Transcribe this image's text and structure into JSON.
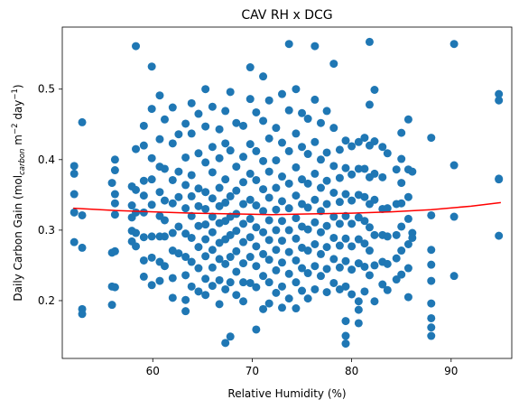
{
  "chart_data": {
    "type": "scatter",
    "title": "CAV RH x DCG",
    "xlabel": "Relative Humidity (%)",
    "ylabel_parts": {
      "prefix": "Daily Carbon Gain (mol",
      "subscript": "carbon",
      "middle": " m",
      "sup1": "−2",
      "middle2": " day",
      "sup2": "−1",
      "suffix": ")"
    },
    "xlim": [
      50.9,
      96.1
    ],
    "ylim": [
      0.118,
      0.588
    ],
    "xticks": [
      {
        "value": 60,
        "label": "60"
      },
      {
        "value": 70,
        "label": "70"
      },
      {
        "value": 80,
        "label": "80"
      },
      {
        "value": 90,
        "label": "90"
      }
    ],
    "yticks": [
      {
        "value": 0.2,
        "label": "0.2"
      },
      {
        "value": 0.3,
        "label": "0.3"
      },
      {
        "value": 0.4,
        "label": "0.4"
      },
      {
        "value": 0.5,
        "label": "0.5"
      }
    ],
    "point_color": "#1f77b4",
    "trend_color": "#ff0000",
    "trend_line": {
      "type": "quadratic",
      "x": [
        52,
        56,
        60,
        64,
        68,
        72,
        76,
        80,
        84,
        88,
        92,
        95
      ],
      "y": [
        0.331,
        0.328,
        0.326,
        0.324,
        0.323,
        0.322,
        0.323,
        0.324,
        0.326,
        0.329,
        0.334,
        0.339
      ]
    },
    "points": [
      [
        52.1,
        0.391
      ],
      [
        52.1,
        0.38
      ],
      [
        52.1,
        0.351
      ],
      [
        52.1,
        0.325
      ],
      [
        52.1,
        0.283
      ],
      [
        52.9,
        0.453
      ],
      [
        52.9,
        0.321
      ],
      [
        52.9,
        0.275
      ],
      [
        52.9,
        0.188
      ],
      [
        52.9,
        0.181
      ],
      [
        55.9,
        0.367
      ],
      [
        55.9,
        0.268
      ],
      [
        55.9,
        0.22
      ],
      [
        55.9,
        0.194
      ],
      [
        56.2,
        0.4
      ],
      [
        56.2,
        0.385
      ],
      [
        56.2,
        0.351
      ],
      [
        56.2,
        0.338
      ],
      [
        56.2,
        0.322
      ],
      [
        56.2,
        0.27
      ],
      [
        56.2,
        0.219
      ],
      [
        57.9,
        0.362
      ],
      [
        57.9,
        0.335
      ],
      [
        57.9,
        0.318
      ],
      [
        57.9,
        0.299
      ],
      [
        57.9,
        0.284
      ],
      [
        58.3,
        0.561
      ],
      [
        58.3,
        0.415
      ],
      [
        58.3,
        0.357
      ],
      [
        58.3,
        0.325
      ],
      [
        58.3,
        0.296
      ],
      [
        58.3,
        0.277
      ],
      [
        59.1,
        0.448
      ],
      [
        59.1,
        0.42
      ],
      [
        59.1,
        0.37
      ],
      [
        59.1,
        0.349
      ],
      [
        59.1,
        0.325
      ],
      [
        59.1,
        0.29
      ],
      [
        59.1,
        0.257
      ],
      [
        59.1,
        0.234
      ],
      [
        59.9,
        0.532
      ],
      [
        59.9,
        0.472
      ],
      [
        59.9,
        0.402
      ],
      [
        59.9,
        0.372
      ],
      [
        59.9,
        0.336
      ],
      [
        59.9,
        0.291
      ],
      [
        59.9,
        0.261
      ],
      [
        59.9,
        0.222
      ],
      [
        60.7,
        0.491
      ],
      [
        60.7,
        0.429
      ],
      [
        60.7,
        0.39
      ],
      [
        60.7,
        0.354
      ],
      [
        60.7,
        0.32
      ],
      [
        60.7,
        0.291
      ],
      [
        60.7,
        0.255
      ],
      [
        60.7,
        0.228
      ],
      [
        61.2,
        0.457
      ],
      [
        61.2,
        0.387
      ],
      [
        61.2,
        0.342
      ],
      [
        61.2,
        0.314
      ],
      [
        61.2,
        0.291
      ],
      [
        61.2,
        0.249
      ],
      [
        62.0,
        0.474
      ],
      [
        62.0,
        0.423
      ],
      [
        62.0,
        0.371
      ],
      [
        62.0,
        0.338
      ],
      [
        62.0,
        0.296
      ],
      [
        62.0,
        0.271
      ],
      [
        62.0,
        0.232
      ],
      [
        62.0,
        0.204
      ],
      [
        62.6,
        0.436
      ],
      [
        62.6,
        0.383
      ],
      [
        62.6,
        0.347
      ],
      [
        62.6,
        0.305
      ],
      [
        62.6,
        0.267
      ],
      [
        63.3,
        0.451
      ],
      [
        63.3,
        0.403
      ],
      [
        63.3,
        0.364
      ],
      [
        63.3,
        0.331
      ],
      [
        63.3,
        0.295
      ],
      [
        63.3,
        0.262
      ],
      [
        63.3,
        0.236
      ],
      [
        63.3,
        0.201
      ],
      [
        63.3,
        0.185
      ],
      [
        63.9,
        0.48
      ],
      [
        63.9,
        0.437
      ],
      [
        63.9,
        0.378
      ],
      [
        63.9,
        0.348
      ],
      [
        63.9,
        0.32
      ],
      [
        63.9,
        0.289
      ],
      [
        63.9,
        0.255
      ],
      [
        63.9,
        0.22
      ],
      [
        64.6,
        0.465
      ],
      [
        64.6,
        0.409
      ],
      [
        64.6,
        0.359
      ],
      [
        64.6,
        0.334
      ],
      [
        64.6,
        0.306
      ],
      [
        64.6,
        0.276
      ],
      [
        64.6,
        0.246
      ],
      [
        64.6,
        0.213
      ],
      [
        65.3,
        0.5
      ],
      [
        65.3,
        0.447
      ],
      [
        65.3,
        0.396
      ],
      [
        65.3,
        0.354
      ],
      [
        65.3,
        0.33
      ],
      [
        65.3,
        0.308
      ],
      [
        65.3,
        0.287
      ],
      [
        65.3,
        0.263
      ],
      [
        65.3,
        0.231
      ],
      [
        65.3,
        0.208
      ],
      [
        66.0,
        0.475
      ],
      [
        66.0,
        0.418
      ],
      [
        66.0,
        0.382
      ],
      [
        66.0,
        0.345
      ],
      [
        66.0,
        0.319
      ],
      [
        66.0,
        0.297
      ],
      [
        66.0,
        0.272
      ],
      [
        66.0,
        0.247
      ],
      [
        66.0,
        0.221
      ],
      [
        66.7,
        0.443
      ],
      [
        66.7,
        0.402
      ],
      [
        66.7,
        0.36
      ],
      [
        66.7,
        0.334
      ],
      [
        66.7,
        0.31
      ],
      [
        66.7,
        0.282
      ],
      [
        66.7,
        0.259
      ],
      [
        66.7,
        0.229
      ],
      [
        66.7,
        0.195
      ],
      [
        67.3,
        0.469
      ],
      [
        67.3,
        0.423
      ],
      [
        67.3,
        0.372
      ],
      [
        67.3,
        0.339
      ],
      [
        67.3,
        0.313
      ],
      [
        67.3,
        0.287
      ],
      [
        67.3,
        0.252
      ],
      [
        67.3,
        0.216
      ],
      [
        67.3,
        0.14
      ],
      [
        67.8,
        0.496
      ],
      [
        67.8,
        0.413
      ],
      [
        67.8,
        0.348
      ],
      [
        67.8,
        0.319
      ],
      [
        67.8,
        0.293
      ],
      [
        67.8,
        0.262
      ],
      [
        67.8,
        0.226
      ],
      [
        67.8,
        0.149
      ],
      [
        68.4,
        0.452
      ],
      [
        68.4,
        0.39
      ],
      [
        68.4,
        0.356
      ],
      [
        68.4,
        0.323
      ],
      [
        68.4,
        0.299
      ],
      [
        68.4,
        0.27
      ],
      [
        68.4,
        0.241
      ],
      [
        68.4,
        0.208
      ],
      [
        69.1,
        0.448
      ],
      [
        69.1,
        0.404
      ],
      [
        69.1,
        0.368
      ],
      [
        69.1,
        0.337
      ],
      [
        69.1,
        0.309
      ],
      [
        69.1,
        0.283
      ],
      [
        69.1,
        0.253
      ],
      [
        69.1,
        0.226
      ],
      [
        69.1,
        0.199
      ],
      [
        69.8,
        0.531
      ],
      [
        69.8,
        0.486
      ],
      [
        69.8,
        0.422
      ],
      [
        69.8,
        0.38
      ],
      [
        69.8,
        0.343
      ],
      [
        69.8,
        0.316
      ],
      [
        69.8,
        0.29
      ],
      [
        69.8,
        0.262
      ],
      [
        69.8,
        0.225
      ],
      [
        70.4,
        0.467
      ],
      [
        70.4,
        0.412
      ],
      [
        70.4,
        0.371
      ],
      [
        70.4,
        0.335
      ],
      [
        70.4,
        0.304
      ],
      [
        70.4,
        0.277
      ],
      [
        70.4,
        0.249
      ],
      [
        70.4,
        0.219
      ],
      [
        70.4,
        0.159
      ],
      [
        71.1,
        0.518
      ],
      [
        71.1,
        0.455
      ],
      [
        71.1,
        0.398
      ],
      [
        71.1,
        0.358
      ],
      [
        71.1,
        0.327
      ],
      [
        71.1,
        0.297
      ],
      [
        71.1,
        0.266
      ],
      [
        71.1,
        0.235
      ],
      [
        71.1,
        0.188
      ],
      [
        71.7,
        0.484
      ],
      [
        71.7,
        0.43
      ],
      [
        71.7,
        0.383
      ],
      [
        71.7,
        0.346
      ],
      [
        71.7,
        0.314
      ],
      [
        71.7,
        0.286
      ],
      [
        71.7,
        0.258
      ],
      [
        71.7,
        0.226
      ],
      [
        71.7,
        0.196
      ],
      [
        72.4,
        0.445
      ],
      [
        72.4,
        0.399
      ],
      [
        72.4,
        0.36
      ],
      [
        72.4,
        0.329
      ],
      [
        72.4,
        0.3
      ],
      [
        72.4,
        0.272
      ],
      [
        72.4,
        0.243
      ],
      [
        72.4,
        0.211
      ],
      [
        73.0,
        0.493
      ],
      [
        73.0,
        0.424
      ],
      [
        73.0,
        0.376
      ],
      [
        73.0,
        0.341
      ],
      [
        73.0,
        0.313
      ],
      [
        73.0,
        0.285
      ],
      [
        73.0,
        0.254
      ],
      [
        73.0,
        0.22
      ],
      [
        73.0,
        0.19
      ],
      [
        73.7,
        0.564
      ],
      [
        73.7,
        0.47
      ],
      [
        73.7,
        0.412
      ],
      [
        73.7,
        0.366
      ],
      [
        73.7,
        0.331
      ],
      [
        73.7,
        0.3
      ],
      [
        73.7,
        0.269
      ],
      [
        73.7,
        0.238
      ],
      [
        73.7,
        0.203
      ],
      [
        74.4,
        0.5
      ],
      [
        74.4,
        0.437
      ],
      [
        74.4,
        0.389
      ],
      [
        74.4,
        0.349
      ],
      [
        74.4,
        0.317
      ],
      [
        74.4,
        0.288
      ],
      [
        74.4,
        0.257
      ],
      [
        74.4,
        0.226
      ],
      [
        74.4,
        0.189
      ],
      [
        75.0,
        0.466
      ],
      [
        75.0,
        0.418
      ],
      [
        75.0,
        0.372
      ],
      [
        75.0,
        0.337
      ],
      [
        75.0,
        0.305
      ],
      [
        75.0,
        0.275
      ],
      [
        75.0,
        0.246
      ],
      [
        75.0,
        0.214
      ],
      [
        75.6,
        0.458
      ],
      [
        75.6,
        0.408
      ],
      [
        75.6,
        0.366
      ],
      [
        75.6,
        0.332
      ],
      [
        75.6,
        0.301
      ],
      [
        75.6,
        0.271
      ],
      [
        75.6,
        0.239
      ],
      [
        75.6,
        0.203
      ],
      [
        76.3,
        0.561
      ],
      [
        76.3,
        0.485
      ],
      [
        76.3,
        0.425
      ],
      [
        76.3,
        0.38
      ],
      [
        76.3,
        0.343
      ],
      [
        76.3,
        0.311
      ],
      [
        76.3,
        0.28
      ],
      [
        76.3,
        0.249
      ],
      [
        76.3,
        0.216
      ],
      [
        76.9,
        0.452
      ],
      [
        76.9,
        0.4
      ],
      [
        76.9,
        0.36
      ],
      [
        76.9,
        0.327
      ],
      [
        76.9,
        0.297
      ],
      [
        76.9,
        0.266
      ],
      [
        76.9,
        0.235
      ],
      [
        77.5,
        0.469
      ],
      [
        77.5,
        0.41
      ],
      [
        77.5,
        0.37
      ],
      [
        77.5,
        0.337
      ],
      [
        77.5,
        0.306
      ],
      [
        77.5,
        0.276
      ],
      [
        77.5,
        0.245
      ],
      [
        77.5,
        0.212
      ],
      [
        78.2,
        0.536
      ],
      [
        78.2,
        0.445
      ],
      [
        78.2,
        0.391
      ],
      [
        78.2,
        0.353
      ],
      [
        78.2,
        0.319
      ],
      [
        78.2,
        0.289
      ],
      [
        78.2,
        0.259
      ],
      [
        78.2,
        0.225
      ],
      [
        78.8,
        0.414
      ],
      [
        78.8,
        0.374
      ],
      [
        78.8,
        0.34
      ],
      [
        78.8,
        0.309
      ],
      [
        78.8,
        0.278
      ],
      [
        78.8,
        0.247
      ],
      [
        78.8,
        0.216
      ],
      [
        79.4,
        0.427
      ],
      [
        79.4,
        0.388
      ],
      [
        79.4,
        0.351
      ],
      [
        79.4,
        0.32
      ],
      [
        79.4,
        0.288
      ],
      [
        79.4,
        0.256
      ],
      [
        79.4,
        0.22
      ],
      [
        79.4,
        0.171
      ],
      [
        79.4,
        0.15
      ],
      [
        79.4,
        0.139
      ],
      [
        80.0,
        0.419
      ],
      [
        80.0,
        0.379
      ],
      [
        80.0,
        0.342
      ],
      [
        80.0,
        0.309
      ],
      [
        80.0,
        0.277
      ],
      [
        80.0,
        0.244
      ],
      [
        80.0,
        0.209
      ],
      [
        80.7,
        0.425
      ],
      [
        80.7,
        0.387
      ],
      [
        80.7,
        0.35
      ],
      [
        80.7,
        0.318
      ],
      [
        80.7,
        0.287
      ],
      [
        80.7,
        0.253
      ],
      [
        80.7,
        0.199
      ],
      [
        80.7,
        0.187
      ],
      [
        80.7,
        0.168
      ],
      [
        81.3,
        0.431
      ],
      [
        81.3,
        0.387
      ],
      [
        81.3,
        0.347
      ],
      [
        81.3,
        0.313
      ],
      [
        81.3,
        0.281
      ],
      [
        81.3,
        0.248
      ],
      [
        81.3,
        0.213
      ],
      [
        81.8,
        0.567
      ],
      [
        81.8,
        0.478
      ],
      [
        81.8,
        0.42
      ],
      [
        81.8,
        0.375
      ],
      [
        81.8,
        0.337
      ],
      [
        81.8,
        0.304
      ],
      [
        81.8,
        0.271
      ],
      [
        81.8,
        0.236
      ],
      [
        82.3,
        0.499
      ],
      [
        82.3,
        0.426
      ],
      [
        82.3,
        0.38
      ],
      [
        82.3,
        0.343
      ],
      [
        82.3,
        0.293
      ],
      [
        82.3,
        0.25
      ],
      [
        82.3,
        0.199
      ],
      [
        83.1,
        0.418
      ],
      [
        83.1,
        0.375
      ],
      [
        83.1,
        0.33
      ],
      [
        83.1,
        0.293
      ],
      [
        83.1,
        0.255
      ],
      [
        83.1,
        0.223
      ],
      [
        83.6,
        0.409
      ],
      [
        83.6,
        0.331
      ],
      [
        83.6,
        0.291
      ],
      [
        83.6,
        0.252
      ],
      [
        83.6,
        0.215
      ],
      [
        84.5,
        0.386
      ],
      [
        84.5,
        0.337
      ],
      [
        84.5,
        0.293
      ],
      [
        84.5,
        0.26
      ],
      [
        84.5,
        0.23
      ],
      [
        85.0,
        0.438
      ],
      [
        85.0,
        0.401
      ],
      [
        85.0,
        0.367
      ],
      [
        85.0,
        0.338
      ],
      [
        85.0,
        0.305
      ],
      [
        85.0,
        0.271
      ],
      [
        85.0,
        0.237
      ],
      [
        85.7,
        0.457
      ],
      [
        85.7,
        0.386
      ],
      [
        85.7,
        0.347
      ],
      [
        85.7,
        0.316
      ],
      [
        85.7,
        0.28
      ],
      [
        85.7,
        0.246
      ],
      [
        85.7,
        0.205
      ],
      [
        86.1,
        0.383
      ],
      [
        86.1,
        0.296
      ],
      [
        86.1,
        0.289
      ],
      [
        88.0,
        0.431
      ],
      [
        88.0,
        0.321
      ],
      [
        88.0,
        0.272
      ],
      [
        88.0,
        0.251
      ],
      [
        88.0,
        0.228
      ],
      [
        88.0,
        0.196
      ],
      [
        88.0,
        0.175
      ],
      [
        88.0,
        0.162
      ],
      [
        88.0,
        0.15
      ],
      [
        90.3,
        0.564
      ],
      [
        90.3,
        0.392
      ],
      [
        90.3,
        0.319
      ],
      [
        90.3,
        0.235
      ],
      [
        94.8,
        0.493
      ],
      [
        94.8,
        0.484
      ],
      [
        94.8,
        0.373
      ],
      [
        94.8,
        0.372
      ],
      [
        94.8,
        0.292
      ]
    ]
  }
}
